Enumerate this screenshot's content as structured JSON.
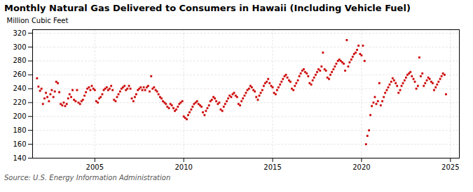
{
  "chart_data": {
    "type": "scatter",
    "title": "Monthly Natural Gas Delivered to Consumers in Hawaii (Including Vehicle Fuel)",
    "ylabel": "Million Cubic Feet",
    "source": "Source: U.S. Energy Information Administration",
    "color": "#cc0000",
    "marker": "square",
    "grid": true,
    "xlim": [
      2001.5,
      2025.5
    ],
    "ylim": [
      140,
      325
    ],
    "xticks": [
      2005,
      2010,
      2015,
      2020,
      2025
    ],
    "yticks": [
      140,
      160,
      180,
      200,
      220,
      240,
      260,
      280,
      300,
      320
    ],
    "x": [
      2001.75,
      2001.83,
      2001.92,
      2002.0,
      2002.08,
      2002.17,
      2002.25,
      2002.33,
      2002.42,
      2002.5,
      2002.58,
      2002.67,
      2002.75,
      2002.83,
      2002.92,
      2003.0,
      2003.08,
      2003.17,
      2003.25,
      2003.33,
      2003.42,
      2003.5,
      2003.58,
      2003.67,
      2003.75,
      2003.83,
      2003.92,
      2004.0,
      2004.08,
      2004.17,
      2004.25,
      2004.33,
      2004.42,
      2004.5,
      2004.58,
      2004.67,
      2004.75,
      2004.83,
      2004.92,
      2005.0,
      2005.08,
      2005.17,
      2005.25,
      2005.33,
      2005.42,
      2005.5,
      2005.58,
      2005.67,
      2005.75,
      2005.83,
      2005.92,
      2006.0,
      2006.08,
      2006.17,
      2006.25,
      2006.33,
      2006.42,
      2006.5,
      2006.58,
      2006.67,
      2006.75,
      2006.83,
      2006.92,
      2007.0,
      2007.08,
      2007.17,
      2007.25,
      2007.33,
      2007.42,
      2007.5,
      2007.58,
      2007.67,
      2007.75,
      2007.83,
      2007.92,
      2008.0,
      2008.08,
      2008.17,
      2008.25,
      2008.33,
      2008.42,
      2008.5,
      2008.58,
      2008.67,
      2008.75,
      2008.83,
      2008.92,
      2009.0,
      2009.08,
      2009.17,
      2009.25,
      2009.33,
      2009.42,
      2009.5,
      2009.58,
      2009.67,
      2009.75,
      2009.83,
      2009.92,
      2010.0,
      2010.08,
      2010.17,
      2010.25,
      2010.33,
      2010.42,
      2010.5,
      2010.58,
      2010.67,
      2010.75,
      2010.83,
      2010.92,
      2011.0,
      2011.08,
      2011.17,
      2011.25,
      2011.33,
      2011.42,
      2011.5,
      2011.58,
      2011.67,
      2011.75,
      2011.83,
      2011.92,
      2012.0,
      2012.08,
      2012.17,
      2012.25,
      2012.33,
      2012.42,
      2012.5,
      2012.58,
      2012.67,
      2012.75,
      2012.83,
      2012.92,
      2013.0,
      2013.08,
      2013.17,
      2013.25,
      2013.33,
      2013.42,
      2013.5,
      2013.58,
      2013.67,
      2013.75,
      2013.83,
      2013.92,
      2014.0,
      2014.08,
      2014.17,
      2014.25,
      2014.33,
      2014.42,
      2014.5,
      2014.58,
      2014.67,
      2014.75,
      2014.83,
      2014.92,
      2015.0,
      2015.08,
      2015.17,
      2015.25,
      2015.33,
      2015.42,
      2015.5,
      2015.58,
      2015.67,
      2015.75,
      2015.83,
      2015.92,
      2016.0,
      2016.08,
      2016.17,
      2016.25,
      2016.33,
      2016.42,
      2016.5,
      2016.58,
      2016.67,
      2016.75,
      2016.83,
      2016.92,
      2017.0,
      2017.08,
      2017.17,
      2017.25,
      2017.33,
      2017.42,
      2017.5,
      2017.58,
      2017.67,
      2017.75,
      2017.83,
      2017.92,
      2018.0,
      2018.08,
      2018.17,
      2018.25,
      2018.33,
      2018.42,
      2018.5,
      2018.58,
      2018.67,
      2018.75,
      2018.83,
      2018.92,
      2019.0,
      2019.08,
      2019.17,
      2019.25,
      2019.33,
      2019.42,
      2019.5,
      2019.58,
      2019.67,
      2019.75,
      2019.83,
      2019.92,
      2020.0,
      2020.08,
      2020.17,
      2020.25,
      2020.33,
      2020.42,
      2020.5,
      2020.58,
      2020.67,
      2020.75,
      2020.83,
      2020.92,
      2021.0,
      2021.08,
      2021.17,
      2021.25,
      2021.33,
      2021.42,
      2021.5,
      2021.58,
      2021.67,
      2021.75,
      2021.83,
      2021.92,
      2022.0,
      2022.08,
      2022.17,
      2022.25,
      2022.33,
      2022.42,
      2022.5,
      2022.58,
      2022.67,
      2022.75,
      2022.83,
      2022.92,
      2023.0,
      2023.08,
      2023.17,
      2023.25,
      2023.33,
      2023.42,
      2023.5,
      2023.58,
      2023.67,
      2023.75,
      2023.83,
      2023.92,
      2024.0,
      2024.08,
      2024.17,
      2024.25,
      2024.33,
      2024.42,
      2024.5,
      2024.58,
      2024.67,
      2024.75
    ],
    "values": [
      255,
      243,
      237,
      240,
      218,
      226,
      234,
      228,
      222,
      232,
      238,
      228,
      236,
      250,
      248,
      235,
      218,
      216,
      220,
      215,
      218,
      226,
      232,
      228,
      238,
      224,
      222,
      238,
      220,
      218,
      222,
      224,
      230,
      235,
      240,
      242,
      238,
      244,
      240,
      238,
      222,
      220,
      226,
      228,
      232,
      238,
      240,
      242,
      238,
      240,
      244,
      238,
      224,
      222,
      228,
      232,
      236,
      240,
      242,
      244,
      238,
      240,
      244,
      240,
      226,
      222,
      228,
      232,
      238,
      240,
      242,
      238,
      242,
      238,
      242,
      244,
      236,
      258,
      240,
      242,
      238,
      236,
      232,
      228,
      226,
      222,
      220,
      218,
      214,
      212,
      218,
      216,
      212,
      208,
      210,
      214,
      218,
      220,
      222,
      200,
      198,
      196,
      202,
      206,
      210,
      214,
      218,
      220,
      222,
      218,
      216,
      214,
      206,
      202,
      208,
      212,
      216,
      222,
      224,
      228,
      226,
      222,
      218,
      220,
      210,
      208,
      214,
      218,
      222,
      226,
      230,
      228,
      232,
      234,
      230,
      228,
      218,
      216,
      222,
      226,
      230,
      234,
      238,
      240,
      244,
      242,
      238,
      236,
      228,
      224,
      230,
      234,
      238,
      244,
      248,
      250,
      254,
      248,
      244,
      242,
      234,
      232,
      238,
      242,
      246,
      250,
      254,
      258,
      260,
      256,
      252,
      250,
      240,
      238,
      244,
      248,
      252,
      258,
      262,
      266,
      268,
      264,
      262,
      258,
      248,
      246,
      252,
      256,
      260,
      264,
      268,
      266,
      272,
      292,
      268,
      266,
      256,
      254,
      260,
      264,
      268,
      272,
      276,
      280,
      282,
      280,
      278,
      276,
      266,
      310,
      272,
      278,
      282,
      286,
      290,
      292,
      296,
      302,
      290,
      288,
      302,
      280,
      160,
      172,
      180,
      202,
      215,
      220,
      228,
      218,
      222,
      248,
      216,
      222,
      228,
      234,
      238,
      242,
      246,
      250,
      255,
      252,
      248,
      244,
      234,
      238,
      244,
      248,
      252,
      256,
      260,
      262,
      264,
      258,
      254,
      250,
      240,
      244,
      285,
      258,
      262,
      244,
      248,
      252,
      256,
      254,
      250,
      248,
      238,
      242,
      246,
      250,
      254,
      258,
      262,
      260,
      232
    ]
  }
}
